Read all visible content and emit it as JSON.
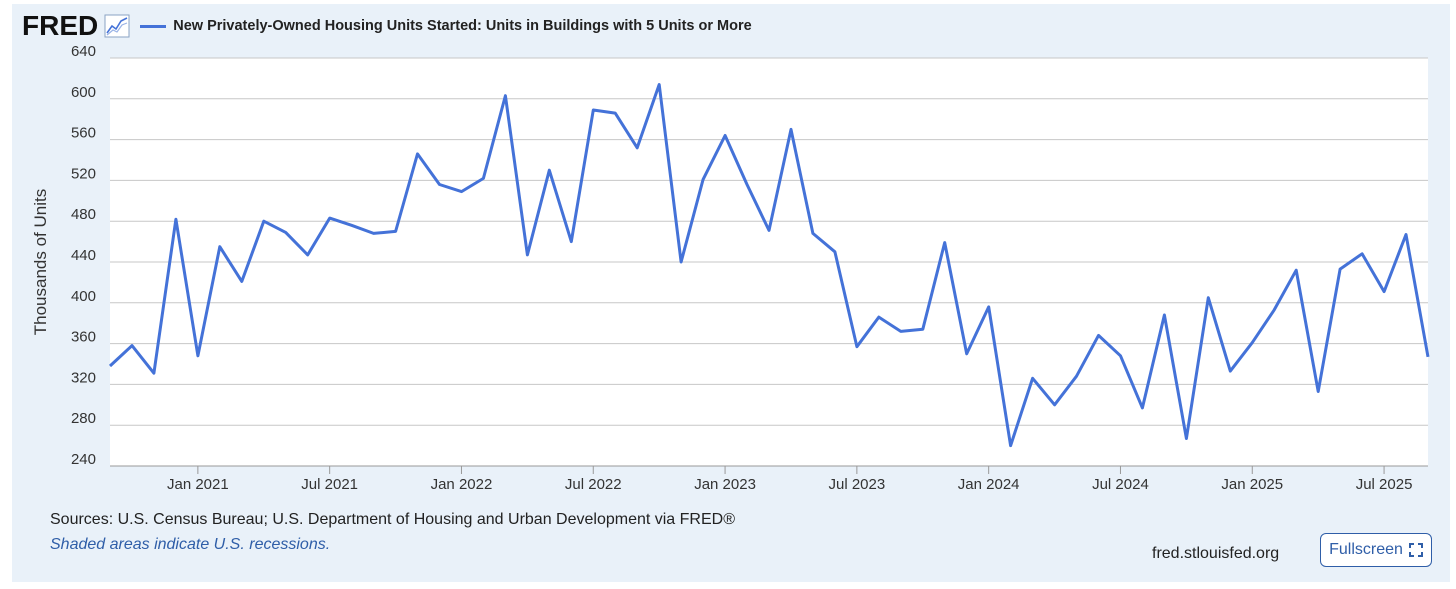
{
  "header": {
    "logo_text": "FRED",
    "logo_icon": "line-chart-icon",
    "legend_label": "New Privately-Owned Housing Units Started: Units in Buildings with 5 Units or More"
  },
  "footer": {
    "sources": "Sources: U.S. Census Bureau; U.S. Department of Housing and Urban Development via FRED®",
    "recession_note": "Shaded areas indicate U.S. recessions.",
    "site": "fred.stlouisfed.org",
    "fullscreen_label": "Fullscreen",
    "fullscreen_icon": "expand-icon"
  },
  "colors": {
    "series": "#4472d8",
    "grid": "#c7c7c7",
    "background": "#e9f1f9",
    "plot_background": "#ffffff"
  },
  "chart_data": {
    "type": "line",
    "title": "New Privately-Owned Housing Units Started: Units in Buildings with 5 Units or More",
    "ylabel": "Thousands of Units",
    "xlabel": "",
    "ylim": [
      240,
      640
    ],
    "yticks": [
      240,
      280,
      320,
      360,
      400,
      440,
      480,
      520,
      560,
      600,
      640
    ],
    "xlim": [
      "2020-09",
      "2025-09"
    ],
    "xticks": [
      {
        "date": "2021-01",
        "label": "Jan 2021"
      },
      {
        "date": "2021-07",
        "label": "Jul 2021"
      },
      {
        "date": "2022-01",
        "label": "Jan 2022"
      },
      {
        "date": "2022-07",
        "label": "Jul 2022"
      },
      {
        "date": "2023-01",
        "label": "Jan 2023"
      },
      {
        "date": "2023-07",
        "label": "Jul 2023"
      },
      {
        "date": "2024-01",
        "label": "Jan 2024"
      },
      {
        "date": "2024-07",
        "label": "Jul 2024"
      },
      {
        "date": "2025-01",
        "label": "Jan 2025"
      },
      {
        "date": "2025-07",
        "label": "Jul 2025"
      }
    ],
    "series": [
      {
        "name": "New Privately-Owned Housing Units Started: Units in Buildings with 5 Units or More",
        "start": "2020-09",
        "values": [
          338,
          358,
          331,
          482,
          348,
          455,
          421,
          480,
          469,
          447,
          483,
          476,
          468,
          470,
          546,
          516,
          509,
          522,
          603,
          447,
          530,
          460,
          589,
          586,
          552,
          614,
          440,
          521,
          564,
          516,
          471,
          570,
          468,
          450,
          357,
          386,
          372,
          374,
          459,
          350,
          396,
          260,
          326,
          300,
          328,
          368,
          348,
          297,
          388,
          267,
          405,
          333,
          361,
          393,
          432,
          313,
          433,
          448,
          411,
          467,
          347
        ]
      }
    ]
  }
}
